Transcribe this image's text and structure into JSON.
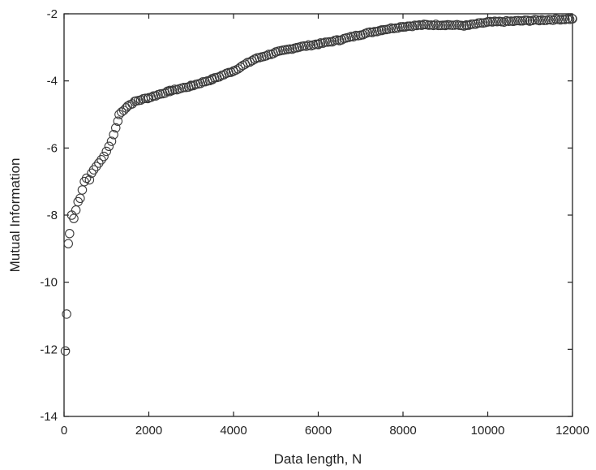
{
  "chart_data": {
    "type": "scatter",
    "title": "",
    "xlabel": "Data length, N",
    "ylabel": "Mutual Information",
    "xlim": [
      0,
      12000
    ],
    "ylim": [
      -14,
      -2
    ],
    "xticks": [
      0,
      2000,
      4000,
      6000,
      8000,
      10000,
      12000
    ],
    "yticks": [
      -14,
      -12,
      -10,
      -8,
      -6,
      -4,
      -2
    ],
    "xtick_labels": [
      "0",
      "2000",
      "4000",
      "6000",
      "8000",
      "10000",
      "12000"
    ],
    "ytick_labels": [
      "-14",
      "-12",
      "-10",
      "-8",
      "-6",
      "-4",
      "-2"
    ],
    "grid": false,
    "legend": "none",
    "marker": "open-circle",
    "marker_color": "#3a3a3a",
    "curve_points": [
      [
        1300,
        -5.0
      ],
      [
        1500,
        -4.75
      ],
      [
        1700,
        -4.6
      ],
      [
        2000,
        -4.5
      ],
      [
        2500,
        -4.3
      ],
      [
        3000,
        -4.15
      ],
      [
        3500,
        -3.95
      ],
      [
        4000,
        -3.7
      ],
      [
        4500,
        -3.35
      ],
      [
        5000,
        -3.15
      ],
      [
        5500,
        -3.0
      ],
      [
        6000,
        -2.9
      ],
      [
        6500,
        -2.78
      ],
      [
        7000,
        -2.62
      ],
      [
        7500,
        -2.48
      ],
      [
        8000,
        -2.38
      ],
      [
        8500,
        -2.33
      ],
      [
        9000,
        -2.33
      ],
      [
        9500,
        -2.35
      ],
      [
        10000,
        -2.25
      ],
      [
        11000,
        -2.2
      ],
      [
        12000,
        -2.15
      ]
    ],
    "curve_step": 55,
    "early_points": [
      [
        30,
        -12.05
      ],
      [
        60,
        -10.95
      ],
      [
        100,
        -8.85
      ],
      [
        130,
        -8.55
      ],
      [
        180,
        -8.0
      ],
      [
        230,
        -8.1
      ],
      [
        280,
        -7.85
      ],
      [
        330,
        -7.6
      ],
      [
        380,
        -7.5
      ],
      [
        430,
        -7.25
      ],
      [
        480,
        -7.0
      ],
      [
        530,
        -6.9
      ],
      [
        600,
        -6.95
      ],
      [
        650,
        -6.75
      ],
      [
        700,
        -6.65
      ],
      [
        760,
        -6.55
      ],
      [
        820,
        -6.45
      ],
      [
        880,
        -6.35
      ],
      [
        940,
        -6.25
      ],
      [
        1000,
        -6.1
      ],
      [
        1060,
        -5.95
      ],
      [
        1120,
        -5.8
      ],
      [
        1170,
        -5.6
      ],
      [
        1220,
        -5.4
      ],
      [
        1270,
        -5.2
      ]
    ]
  }
}
